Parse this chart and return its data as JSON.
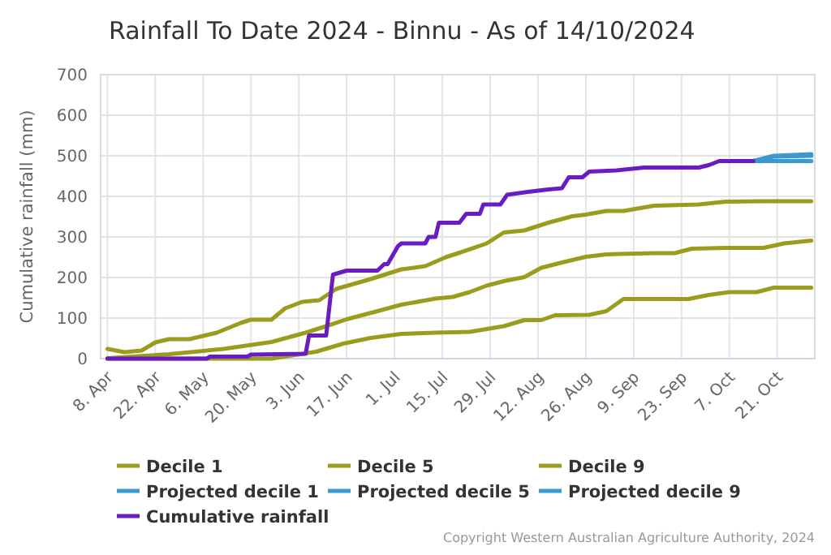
{
  "chart_data": {
    "type": "line",
    "title": "Rainfall To Date 2024 - Binnu - As of 14/10/2024",
    "ylabel": "Cumulative rainfall (mm)",
    "xlim": [
      "2024-04-06",
      "2024-11-01"
    ],
    "xticks": [
      {
        "value": "2024-04-08",
        "label": "8. Apr"
      },
      {
        "value": "2024-04-22",
        "label": "22. Apr"
      },
      {
        "value": "2024-05-06",
        "label": "6. May"
      },
      {
        "value": "2024-05-20",
        "label": "20. May"
      },
      {
        "value": "2024-06-03",
        "label": "3. Jun"
      },
      {
        "value": "2024-06-17",
        "label": "17. Jun"
      },
      {
        "value": "2024-07-01",
        "label": "1. Jul"
      },
      {
        "value": "2024-07-15",
        "label": "15. Jul"
      },
      {
        "value": "2024-07-29",
        "label": "29. Jul"
      },
      {
        "value": "2024-08-12",
        "label": "12. Aug"
      },
      {
        "value": "2024-08-26",
        "label": "26. Aug"
      },
      {
        "value": "2024-09-09",
        "label": "9. Sep"
      },
      {
        "value": "2024-09-23",
        "label": "23. Sep"
      },
      {
        "value": "2024-10-07",
        "label": "7. Oct"
      },
      {
        "value": "2024-10-21",
        "label": "21. Oct"
      }
    ],
    "ylim": [
      0,
      700
    ],
    "yticks": [
      0,
      100,
      200,
      300,
      400,
      500,
      600,
      700
    ],
    "grid": true,
    "legend": "bottom",
    "marker": "none",
    "line_style": "solid",
    "series": [
      {
        "name": "Decile 1",
        "color": "#9c9c1c",
        "x": [
          "2024-04-08",
          "2024-05-26",
          "2024-06-08",
          "2024-06-16",
          "2024-06-24",
          "2024-07-03",
          "2024-07-13",
          "2024-07-23",
          "2024-08-02",
          "2024-08-08",
          "2024-08-13",
          "2024-08-17",
          "2024-08-27",
          "2024-09-01",
          "2024-09-06",
          "2024-09-25",
          "2024-10-01",
          "2024-10-07",
          "2024-10-15",
          "2024-10-20",
          "2024-10-31"
        ],
        "values": [
          0,
          0,
          17,
          37,
          51,
          61,
          64,
          66,
          80,
          95,
          95,
          107,
          108,
          117,
          147,
          147,
          157,
          164,
          164,
          175,
          175
        ]
      },
      {
        "name": "Decile 5",
        "color": "#9c9c1c",
        "x": [
          "2024-04-08",
          "2024-04-26",
          "2024-05-12",
          "2024-05-26",
          "2024-06-05",
          "2024-06-11",
          "2024-06-17",
          "2024-06-26",
          "2024-07-03",
          "2024-07-13",
          "2024-07-18",
          "2024-07-23",
          "2024-07-28",
          "2024-08-02",
          "2024-08-08",
          "2024-08-13",
          "2024-08-19",
          "2024-08-26",
          "2024-09-01",
          "2024-09-15",
          "2024-09-21",
          "2024-09-26",
          "2024-10-06",
          "2024-10-17",
          "2024-10-23",
          "2024-10-31"
        ],
        "values": [
          1,
          11,
          24,
          41,
          64,
          80,
          97,
          117,
          133,
          148,
          152,
          164,
          180,
          191,
          201,
          224,
          237,
          251,
          257,
          260,
          260,
          271,
          273,
          273,
          284,
          291
        ]
      },
      {
        "name": "Decile 9",
        "color": "#9c9c1c",
        "x": [
          "2024-04-08",
          "2024-04-13",
          "2024-04-18",
          "2024-04-22",
          "2024-04-26",
          "2024-05-02",
          "2024-05-10",
          "2024-05-17",
          "2024-05-20",
          "2024-05-26",
          "2024-05-30",
          "2024-06-04",
          "2024-06-09",
          "2024-06-14",
          "2024-06-24",
          "2024-07-03",
          "2024-07-10",
          "2024-07-16",
          "2024-07-20",
          "2024-07-28",
          "2024-08-02",
          "2024-08-08",
          "2024-08-15",
          "2024-08-22",
          "2024-08-26",
          "2024-09-01",
          "2024-09-06",
          "2024-09-15",
          "2024-09-28",
          "2024-10-06",
          "2024-10-17",
          "2024-10-31"
        ],
        "values": [
          24,
          16,
          20,
          40,
          48,
          48,
          64,
          88,
          96,
          96,
          124,
          140,
          144,
          172,
          196,
          220,
          228,
          250,
          261,
          284,
          311,
          316,
          335,
          351,
          355,
          364,
          364,
          377,
          380,
          387,
          388,
          388
        ]
      },
      {
        "name": "Projected decile 1",
        "color": "#3a9ad0",
        "x": [
          "2024-10-14",
          "2024-10-31"
        ],
        "values": [
          487,
          487
        ]
      },
      {
        "name": "Projected decile 5",
        "color": "#3a9ad0",
        "x": [
          "2024-10-14",
          "2024-10-20",
          "2024-10-31"
        ],
        "values": [
          487,
          498,
          500
        ]
      },
      {
        "name": "Projected decile 9",
        "color": "#3a9ad0",
        "x": [
          "2024-10-14",
          "2024-10-20",
          "2024-10-31"
        ],
        "values": [
          487,
          500,
          504
        ]
      },
      {
        "name": "Cumulative rainfall",
        "color": "#6a1bc4",
        "x": [
          "2024-04-08",
          "2024-05-07",
          "2024-05-08",
          "2024-05-19",
          "2024-05-20",
          "2024-06-05",
          "2024-06-06",
          "2024-06-11",
          "2024-06-13",
          "2024-06-17",
          "2024-06-26",
          "2024-06-28",
          "2024-06-29",
          "2024-07-02",
          "2024-07-03",
          "2024-07-10",
          "2024-07-11",
          "2024-07-13",
          "2024-07-14",
          "2024-07-20",
          "2024-07-22",
          "2024-07-26",
          "2024-07-27",
          "2024-08-01",
          "2024-08-03",
          "2024-08-09",
          "2024-08-15",
          "2024-08-19",
          "2024-08-21",
          "2024-08-25",
          "2024-08-27",
          "2024-09-04",
          "2024-09-12",
          "2024-09-28",
          "2024-10-01",
          "2024-10-04",
          "2024-10-14"
        ],
        "values": [
          0,
          0,
          5,
          5,
          10,
          12,
          57,
          57,
          207,
          217,
          217,
          233,
          233,
          277,
          284,
          284,
          300,
          300,
          335,
          335,
          357,
          357,
          380,
          380,
          404,
          411,
          417,
          420,
          447,
          447,
          461,
          464,
          471,
          471,
          477,
          487,
          487
        ]
      }
    ],
    "annotations": [
      "Copyright Western Australian Agriculture Authority, 2024"
    ]
  }
}
